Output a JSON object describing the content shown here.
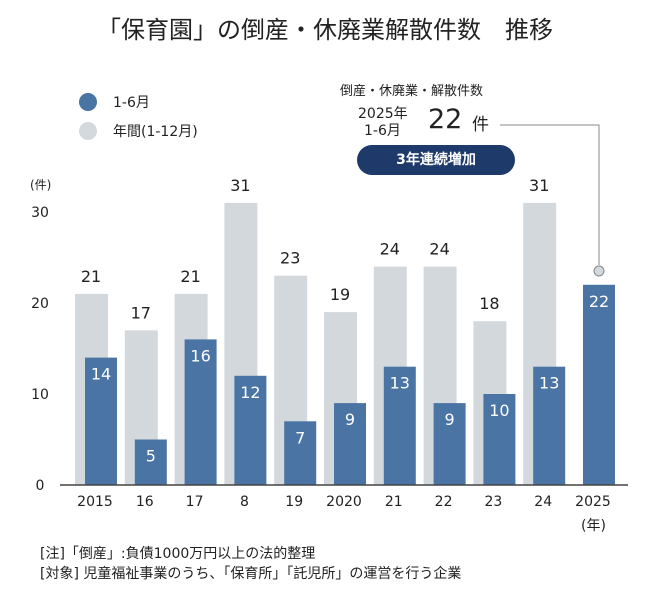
{
  "chart_data": {
    "type": "bar",
    "title": "「保育園」の倒産・休廃業解散件数　推移",
    "categories": [
      "2015",
      "16",
      "17",
      "8",
      "19",
      "2020",
      "21",
      "22",
      "23",
      "24",
      "2025"
    ],
    "x_unit": "(年)",
    "y_unit": "(件)",
    "ylim": [
      0,
      30
    ],
    "yticks": [
      0,
      10,
      20,
      30
    ],
    "grid": false,
    "legend_position": "top-left",
    "series": [
      {
        "name": "1-6月",
        "color": "#4a74a3",
        "values": [
          14,
          5,
          16,
          12,
          7,
          9,
          13,
          9,
          10,
          13,
          22
        ]
      },
      {
        "name": "年間(1-12月)",
        "color": "#d3d8dd",
        "values": [
          21,
          17,
          21,
          31,
          23,
          19,
          24,
          24,
          18,
          31,
          null
        ]
      }
    ],
    "annotation": {
      "heading": "倒産・休廃業・解散件数",
      "period_year": "2025年",
      "period_months": "1-6月",
      "value": "22",
      "unit": "件",
      "badge": "3年連続増加",
      "badge_color": "#1d3a6b"
    },
    "notes": [
      "[注]「倒産」:負債1000万円以上の法的整理",
      "[対象] 児童福祉事業のうち、「保育所」「託児所」の運営を行う企業"
    ]
  }
}
